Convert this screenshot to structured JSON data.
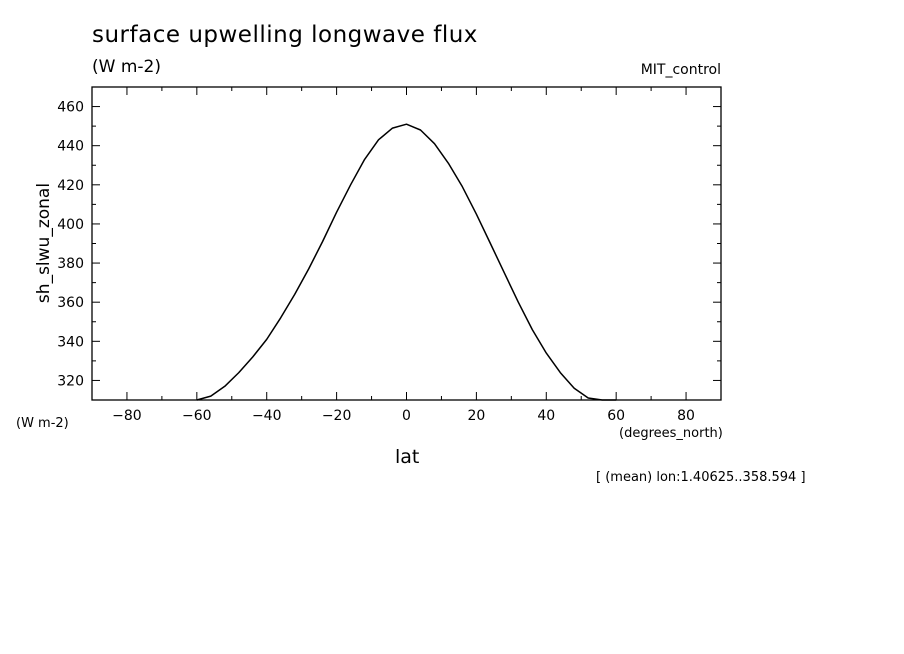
{
  "header": {
    "title": "surface upwelling longwave flux",
    "units": "(W m-2)",
    "experiment": "MIT_control"
  },
  "footer": {
    "y_units": "(W m-2)",
    "x_units": "(degrees_north)",
    "x_label": "lat",
    "note": "[ (mean) lon:1.40625..358.594 ]"
  },
  "chart_data": {
    "type": "line",
    "title": "surface upwelling longwave flux",
    "subtitle": "(W m-2)",
    "xlabel": "lat",
    "ylabel": "sh_slwu_zonal",
    "xlim": [
      -90,
      90
    ],
    "ylim": [
      310,
      470
    ],
    "xticks": [
      -80,
      -60,
      -40,
      -20,
      0,
      20,
      40,
      60,
      80
    ],
    "yticks": [
      320,
      340,
      360,
      380,
      400,
      420,
      440,
      460
    ],
    "xtick_labels": [
      "−80",
      "−60",
      "−40",
      "−20",
      "0",
      "20",
      "40",
      "60",
      "80"
    ],
    "ytick_labels": [
      "320",
      "340",
      "360",
      "380",
      "400",
      "420",
      "440",
      "460"
    ],
    "grid": false,
    "series": [
      {
        "x": [
          -60,
          -56,
          -52,
          -48,
          -44,
          -40,
          -36,
          -32,
          -28,
          -24,
          -20,
          -16,
          -12,
          -8,
          -4,
          0,
          4,
          8,
          12,
          16,
          20,
          24,
          28,
          32,
          36,
          40,
          44,
          48,
          52,
          56,
          60
        ],
        "y": [
          310,
          312,
          317,
          324,
          332,
          341,
          352,
          364,
          377,
          391,
          406,
          420,
          433,
          443,
          449,
          451,
          448,
          441,
          431,
          419,
          405,
          390,
          375,
          360,
          346,
          334,
          324,
          316,
          311,
          310,
          310
        ]
      }
    ]
  }
}
